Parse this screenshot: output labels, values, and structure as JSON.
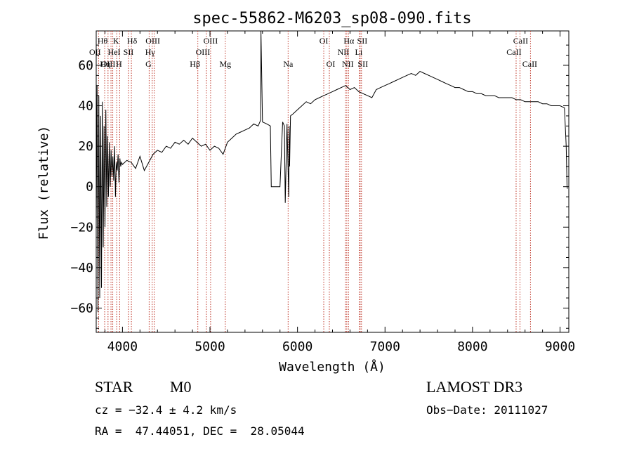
{
  "chart_data": {
    "type": "line",
    "title": "spec-55862-M6203_sp08-090.fits",
    "xlabel": "Wavelength (Å)",
    "ylabel": "Flux (relative)",
    "xlim": [
      3700,
      9100
    ],
    "ylim": [
      -72,
      77
    ],
    "x_ticks": [
      4000,
      5000,
      6000,
      7000,
      8000,
      9000
    ],
    "y_ticks": [
      -60,
      -40,
      -20,
      0,
      20,
      40,
      60
    ],
    "x_tick_labels": [
      "4000",
      "5000",
      "6000",
      "7000",
      "8000",
      "9000"
    ],
    "y_tick_labels": [
      "−60",
      "−40",
      "−20",
      "0",
      "20",
      "40",
      "60"
    ],
    "series": [
      {
        "name": "flux",
        "x": [
          3700,
          3710,
          3720,
          3730,
          3740,
          3750,
          3760,
          3770,
          3780,
          3790,
          3800,
          3810,
          3820,
          3830,
          3840,
          3850,
          3860,
          3870,
          3880,
          3890,
          3900,
          3910,
          3920,
          3930,
          3940,
          3950,
          3960,
          3970,
          3980,
          3990,
          4000,
          4050,
          4100,
          4150,
          4200,
          4250,
          4300,
          4350,
          4400,
          4450,
          4500,
          4550,
          4600,
          4650,
          4700,
          4750,
          4800,
          4850,
          4900,
          4950,
          5000,
          5050,
          5100,
          5150,
          5200,
          5250,
          5300,
          5350,
          5400,
          5450,
          5500,
          5550,
          5580,
          5582,
          5600,
          5650,
          5690,
          5700,
          5720,
          5760,
          5800,
          5830,
          5850,
          5860,
          5880,
          5900,
          5905,
          5910,
          5920,
          5950,
          6000,
          6050,
          6100,
          6150,
          6200,
          6250,
          6300,
          6350,
          6400,
          6450,
          6500,
          6550,
          6600,
          6650,
          6700,
          6750,
          6800,
          6850,
          6900,
          6950,
          7000,
          7050,
          7100,
          7150,
          7200,
          7250,
          7300,
          7350,
          7400,
          7450,
          7500,
          7550,
          7600,
          7650,
          7700,
          7750,
          7800,
          7850,
          7900,
          7950,
          8000,
          8050,
          8100,
          8150,
          8200,
          8250,
          8300,
          8350,
          8400,
          8450,
          8500,
          8550,
          8600,
          8650,
          8700,
          8750,
          8800,
          8850,
          8900,
          8950,
          9000,
          9050,
          9070,
          9080,
          9085
        ],
        "y": [
          -20,
          50,
          -62,
          45,
          -55,
          35,
          -50,
          42,
          -30,
          30,
          -20,
          38,
          -10,
          25,
          -5,
          22,
          0,
          18,
          5,
          15,
          3,
          20,
          -5,
          12,
          8,
          16,
          2,
          14,
          10,
          12,
          11,
          13,
          12,
          9,
          15,
          8,
          12,
          16,
          18,
          17,
          20,
          19,
          22,
          21,
          23,
          21,
          24,
          22,
          20,
          21,
          18,
          20,
          19,
          16,
          22,
          24,
          26,
          27,
          28,
          29,
          31,
          30,
          33,
          77,
          32,
          31,
          30,
          0,
          0,
          0,
          0,
          32,
          30,
          -8,
          31,
          -5,
          30,
          10,
          35,
          36,
          38,
          40,
          42,
          41,
          43,
          44,
          45,
          46,
          47,
          48,
          49,
          50,
          48,
          49,
          47,
          46,
          45,
          44,
          48,
          49,
          50,
          51,
          52,
          53,
          54,
          55,
          56,
          55,
          57,
          56,
          55,
          54,
          53,
          52,
          51,
          50,
          49,
          49,
          48,
          47,
          47,
          46,
          46,
          45,
          45,
          45,
          44,
          44,
          44,
          44,
          43,
          43,
          42,
          42,
          42,
          42,
          41,
          41,
          40,
          40,
          40,
          39,
          20,
          0,
          -1
        ]
      }
    ],
    "lines": [
      {
        "label": "Hθ",
        "x": 3797
      },
      {
        "label": "OII",
        "x": 3727
      },
      {
        "label": "OIII",
        "x": 3869
      },
      {
        "label": "K",
        "x": 3934
      },
      {
        "label": "HeI",
        "x": 3889
      },
      {
        "label": "Hη",
        "x": 3835
      },
      {
        "label": "H",
        "x": 3968
      },
      {
        "label": "SII",
        "x": 4069
      },
      {
        "label": "Hδ",
        "x": 4102
      },
      {
        "label": "OIII",
        "x": 4363
      },
      {
        "label": "Hγ",
        "x": 4340
      },
      {
        "label": "G",
        "x": 4305
      },
      {
        "label": "OIII",
        "x": 5007
      },
      {
        "label": "OIII",
        "x": 4959
      },
      {
        "label": "Hβ",
        "x": 4861
      },
      {
        "label": "Mg",
        "x": 5175
      },
      {
        "label": "Na",
        "x": 5893
      },
      {
        "label": "OI",
        "x": 6300
      },
      {
        "label": "OI",
        "x": 6364
      },
      {
        "label": "Hα",
        "x": 6563
      },
      {
        "label": "SII",
        "x": 6716
      },
      {
        "label": "NII",
        "x": 6548
      },
      {
        "label": "Li",
        "x": 6708
      },
      {
        "label": "NII",
        "x": 6583
      },
      {
        "label": "SII",
        "x": 6731
      },
      {
        "label": "CaII",
        "x": 8542
      },
      {
        "label": "CaII",
        "x": 8498
      },
      {
        "label": "CaII",
        "x": 8662
      }
    ]
  },
  "info": {
    "object_class": "STAR",
    "subclass": "M0",
    "survey": "LAMOST DR3",
    "cz": "cz = −32.4 ± 4.2 km/s",
    "obs_date": "Obs−Date: 20111027",
    "coords": "RA =  47.44051, DEC =  28.05044"
  },
  "colors": {
    "line_marker": "#c0392b",
    "spectrum": "#000000"
  }
}
